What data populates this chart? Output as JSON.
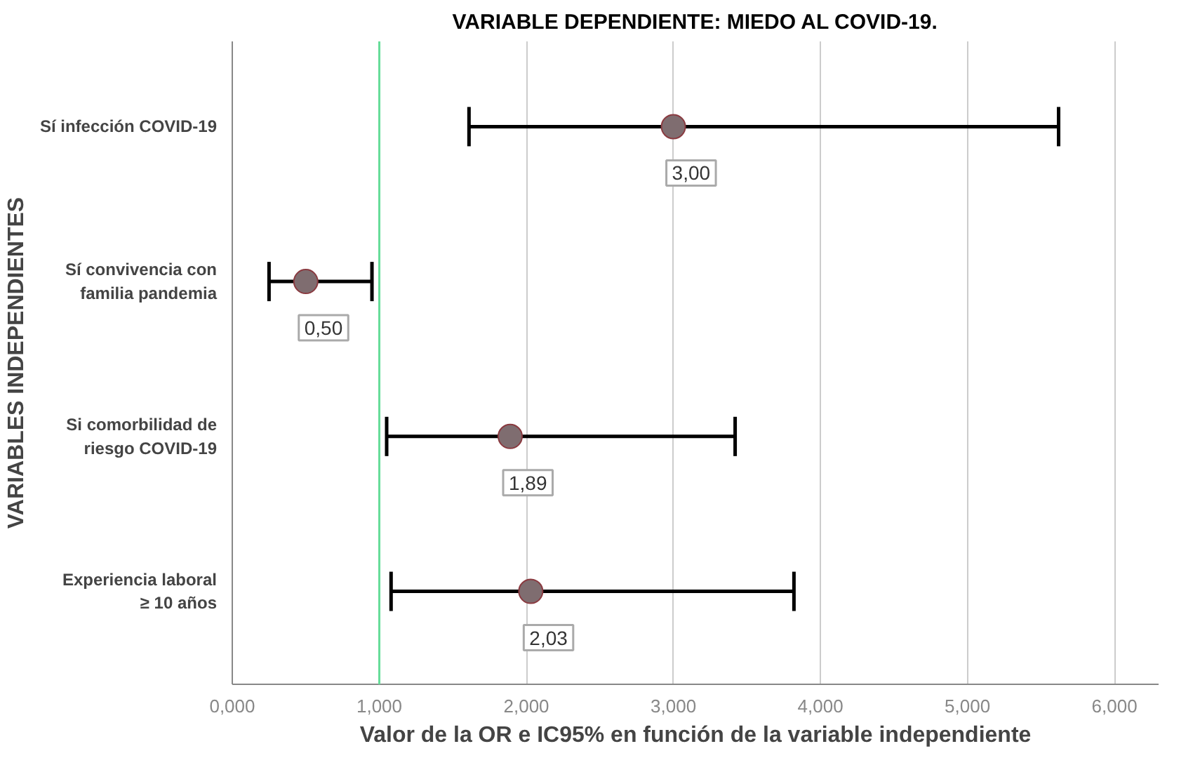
{
  "chart_data": {
    "type": "scatter",
    "orientation": "horizontal",
    "title": "VARIABLE DEPENDIENTE: MIEDO AL COVID-19.",
    "xlabel": "Valor de la OR e IC95% en función de la variable independiente",
    "ylabel": "VARIABLES INDEPENDIENTES",
    "categories": [
      "Sí infección COVID-19",
      "Sí convivencia con\nfamilia pandemia",
      "Si comorbilidad de\nriesgo COVID-19",
      "Experiencia laboral\n≥ 10 años"
    ],
    "values": [
      3.0,
      0.5,
      1.89,
      2.03
    ],
    "errors": [
      [
        1.61,
        5.62
      ],
      [
        0.25,
        0.95
      ],
      [
        1.05,
        3.42
      ],
      [
        1.08,
        3.82
      ]
    ],
    "value_labels": [
      "3,00",
      "0,50",
      "1,89",
      "2,03"
    ],
    "color": "#7f6d70",
    "marker": "circle",
    "xlim": [
      0,
      6.3
    ],
    "xticks": [
      {
        "value": 0,
        "label": "0,000"
      },
      {
        "value": 1,
        "label": "1,000"
      },
      {
        "value": 2,
        "label": "2,000"
      },
      {
        "value": 3,
        "label": "3,000"
      },
      {
        "value": 4,
        "label": "4,000"
      },
      {
        "value": 5,
        "label": "5,000"
      },
      {
        "value": 6,
        "label": "6,000"
      }
    ],
    "ref_lines": [
      {
        "axis": "x",
        "value": 1,
        "label": null,
        "color": "#66dd99"
      }
    ],
    "grid": "x"
  }
}
